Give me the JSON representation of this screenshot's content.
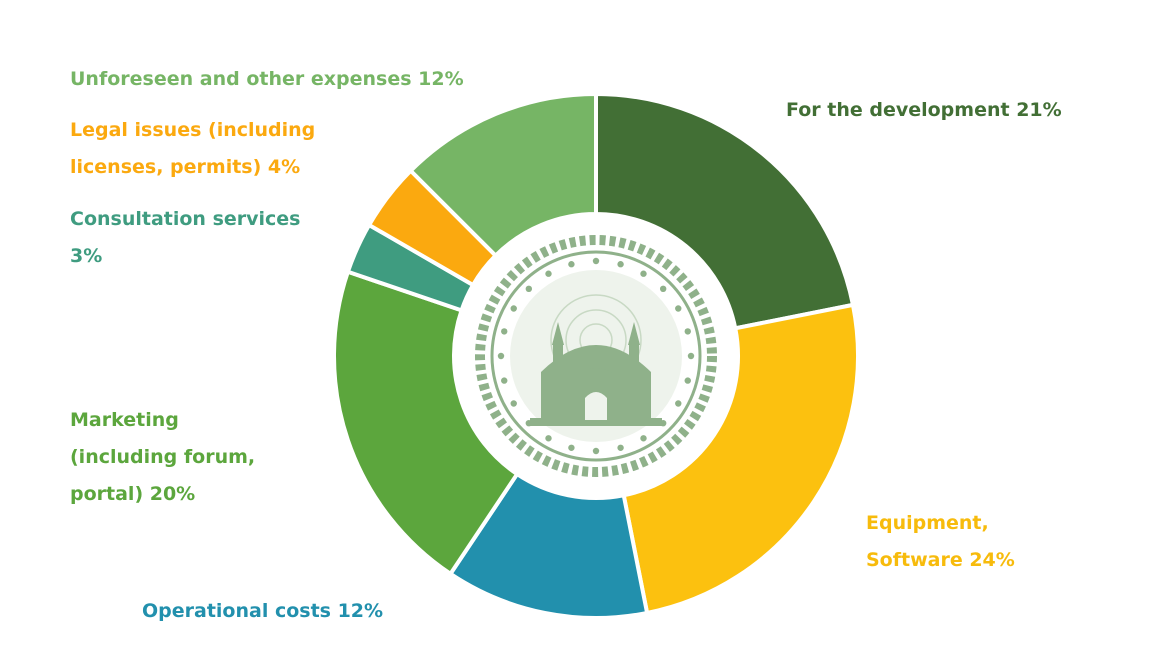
{
  "chart_data": {
    "type": "pie",
    "categories": [
      "For the development",
      "Equipment, Software",
      "Operational costs",
      "Marketing (including forum, portal)",
      "Consultation services",
      "Legal issues (including licenses, permits)",
      "Unforeseen and other expenses"
    ],
    "values": [
      21,
      24,
      12,
      20,
      3,
      4,
      12
    ],
    "colors": [
      "#426f35",
      "#fcc10f",
      "#2290ad",
      "#5ca63d",
      "#3f9c80",
      "#fba90f",
      "#76b565"
    ],
    "donut": true,
    "center_image": "mosque-emblem-icon"
  },
  "labels": {
    "development": [
      "For the development 21%"
    ],
    "equipment": [
      "Equipment,",
      "Software 24%"
    ],
    "operational": [
      "Operational costs 12%"
    ],
    "marketing": [
      "Marketing",
      "(including forum,",
      "portal) 20%"
    ],
    "consultation": [
      "Consultation services",
      "3%"
    ],
    "legal": [
      "Legal issues (including",
      "licenses, permits) 4%"
    ],
    "unforeseen": [
      "Unforeseen and other expenses 12%"
    ]
  }
}
